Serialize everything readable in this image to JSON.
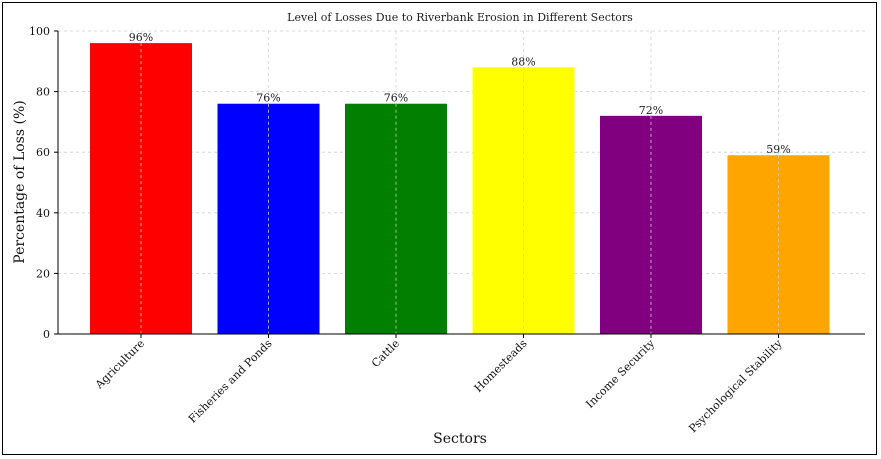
{
  "chart_data": {
    "type": "bar",
    "title": "Level of Losses Due to Riverbank Erosion in Different Sectors",
    "xlabel": "Sectors",
    "ylabel": "Percentage of Loss (%)",
    "categories": [
      "Agriculture",
      "Fisheries and Ponds",
      "Cattle",
      "Homesteads",
      "Income Security",
      "Psychological Stability"
    ],
    "values": [
      96,
      76,
      76,
      88,
      72,
      59
    ],
    "data_labels": [
      "96%",
      "76%",
      "76%",
      "88%",
      "72%",
      "59%"
    ],
    "colors": [
      "#ff0000",
      "#0000ff",
      "#007f00",
      "#ffff00",
      "#800080",
      "#ffa500"
    ],
    "ylim": [
      0,
      100
    ],
    "yticks": [
      0,
      20,
      40,
      60,
      80,
      100
    ],
    "grid": true
  }
}
